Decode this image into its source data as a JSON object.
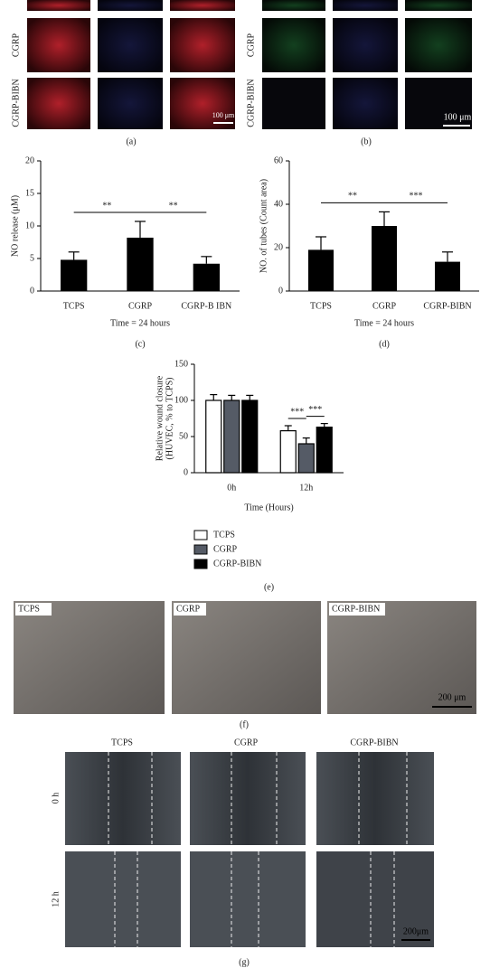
{
  "chart_data": [
    {
      "type": "bar",
      "categories": [
        "TCPS",
        "CGRP",
        "CGRP-B IBN"
      ],
      "values": [
        4.8,
        8.2,
        4.2
      ],
      "errors": [
        1.2,
        2.5,
        1.1
      ],
      "color": "#000000",
      "ylim": [
        0,
        20
      ],
      "yticks": [
        0,
        5,
        10,
        15,
        20
      ],
      "ylabel": "NO release (μM)",
      "xlabel": "Time = 24 hours",
      "panel_label": "(c)",
      "annotations": [
        "**",
        "**"
      ]
    },
    {
      "type": "bar",
      "categories": [
        "TCPS",
        "CGRP",
        "CGRP-BIBN"
      ],
      "values": [
        19,
        30,
        13.5
      ],
      "errors": [
        6,
        6.5,
        4.5
      ],
      "color": "#000000",
      "ylim": [
        0,
        60
      ],
      "yticks": [
        0,
        20,
        40,
        60
      ],
      "ylabel": "NO. of tubes (Count area)",
      "xlabel": "Time = 24 hours",
      "panel_label": "(d)",
      "annotations": [
        "**",
        "***"
      ]
    },
    {
      "type": "grouped_bar",
      "categories": [
        "0h",
        "12h"
      ],
      "series": [
        {
          "name": "TCPS",
          "color": "#ffffff",
          "values": [
            100,
            58
          ],
          "errors": [
            8,
            7
          ]
        },
        {
          "name": "CGRP",
          "color": "#555b66",
          "values": [
            100,
            40
          ],
          "errors": [
            7,
            8
          ]
        },
        {
          "name": "CGRP-BIBN",
          "color": "#000000",
          "values": [
            100,
            63
          ],
          "errors": [
            7,
            5
          ]
        }
      ],
      "ylim": [
        0,
        150
      ],
      "yticks": [
        0,
        50,
        100,
        150
      ],
      "ylabel": [
        "Relative wound closure",
        "(HUVEC, % to TCPS)"
      ],
      "xlabel": "Time (Hours)",
      "panel_label": "(e)",
      "annotations": [
        "***",
        "***"
      ]
    }
  ],
  "panels": {
    "a": {
      "rows": [
        "CGRP",
        "CGRP-BIBN"
      ],
      "scale": "100 μm",
      "label": "(a)"
    },
    "b": {
      "rows": [
        "CGRP",
        "CGRP-BIBN"
      ],
      "scale": "100 μm",
      "label": "(b)"
    },
    "f": {
      "columns": [
        "TCPS",
        "CGRP",
        "CGRP-BIBN"
      ],
      "scale": "200 μm",
      "label": "(f)"
    },
    "g": {
      "columns": [
        "TCPS",
        "CGRP",
        "CGRP-BIBN"
      ],
      "rows": [
        "0 h",
        "12 h"
      ],
      "scale": "200μm",
      "label": "(g)"
    }
  }
}
